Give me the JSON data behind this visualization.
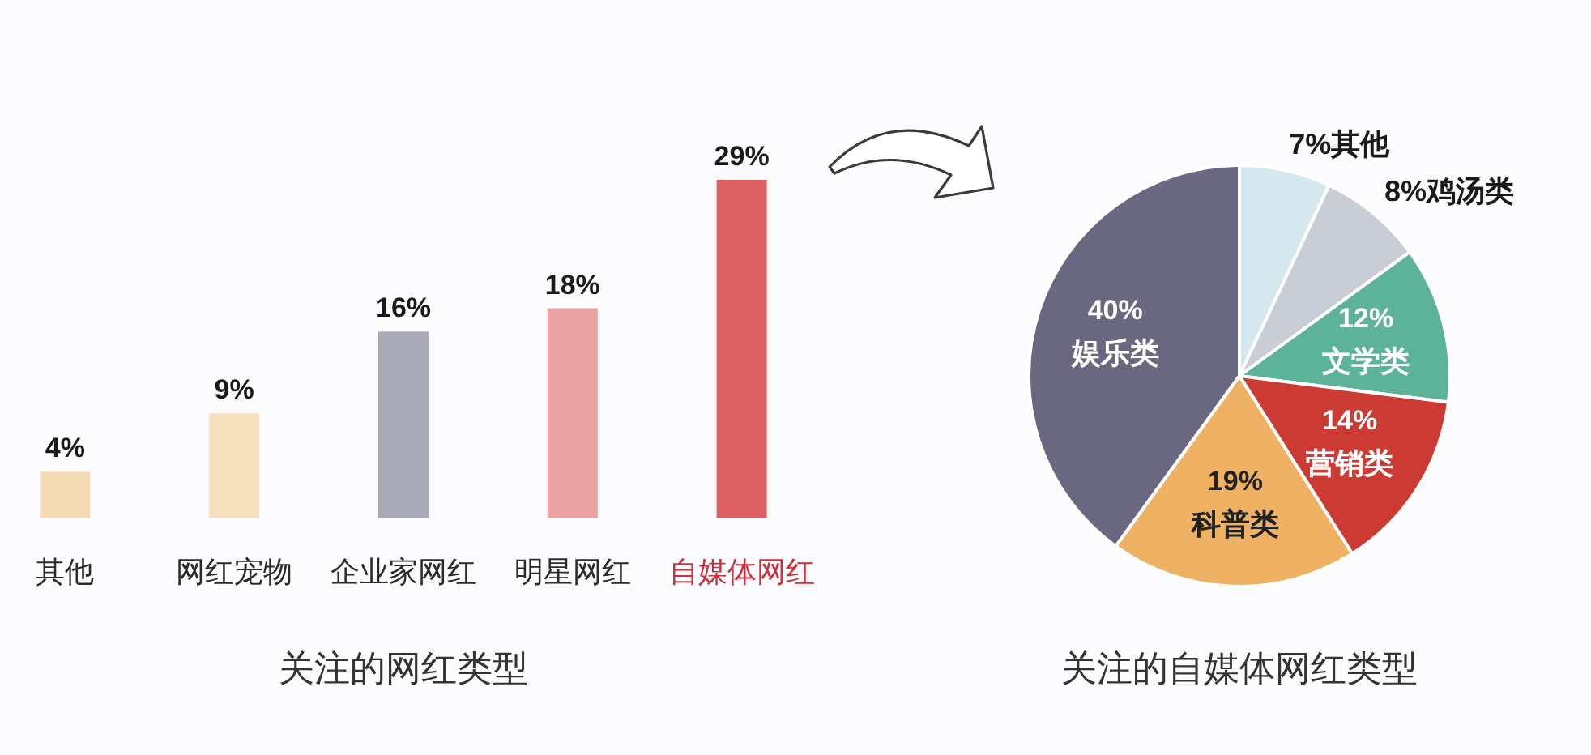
{
  "chart_data": [
    {
      "type": "bar",
      "title": "关注的网红类型",
      "categories": [
        "其他",
        "网红宠物",
        "企业家网红",
        "明星网红",
        "自媒体网红"
      ],
      "values": [
        4,
        9,
        16,
        18,
        29
      ],
      "colors": [
        "#f5dbb4",
        "#f7e0bd",
        "#a9a9b8",
        "#eba2a4",
        "#dc5f62"
      ],
      "value_labels": [
        "4%",
        "9%",
        "16%",
        "18%",
        "29%"
      ]
    },
    {
      "type": "pie",
      "title": "关注的自媒体网红类型",
      "categories": [
        "其他",
        "鸡汤类",
        "文学类",
        "营销类",
        "科普类",
        "娱乐类"
      ],
      "values": [
        7,
        8,
        12,
        14,
        19,
        40
      ],
      "colors": [
        "#d5e8ef",
        "#c9cdd6",
        "#5cb39a",
        "#cb3b33",
        "#efb265",
        "#6a6880"
      ],
      "value_labels": [
        "7%",
        "8%",
        "12%",
        "14%",
        "19%",
        "40%"
      ]
    }
  ]
}
